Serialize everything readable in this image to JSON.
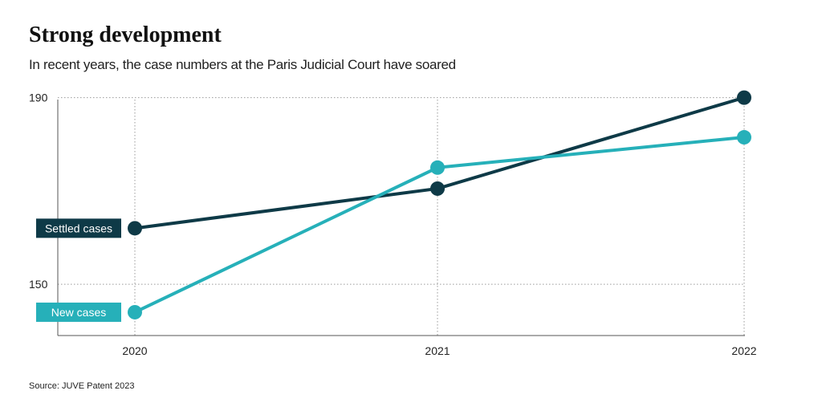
{
  "chart_data": {
    "type": "line",
    "title": "Strong development",
    "subtitle": "In recent years, the case numbers at the Paris Judicial Court have soared",
    "source": "Source: JUVE Patent 2023",
    "x": [
      "2020",
      "2021",
      "2022"
    ],
    "y_ticks": [
      150,
      190
    ],
    "ylim": [
      139,
      192
    ],
    "grid": true,
    "series": [
      {
        "name": "Settled cases",
        "values": [
          162,
          170.5,
          190
        ],
        "color": "#0e3a47"
      },
      {
        "name": "New cases",
        "values": [
          144,
          175,
          181.5
        ],
        "color": "#26b0b9"
      }
    ]
  }
}
